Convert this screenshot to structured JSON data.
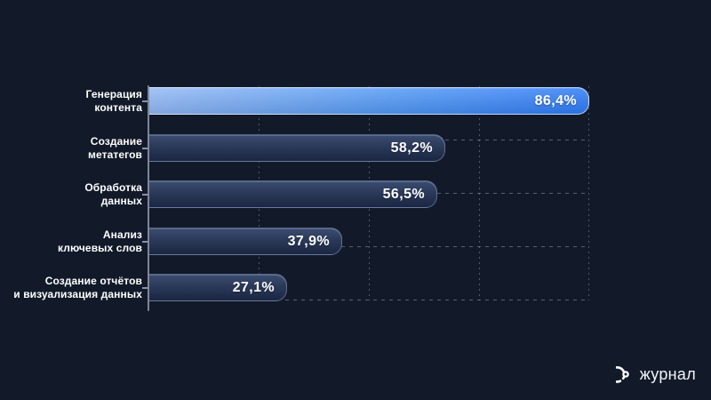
{
  "chart_data": {
    "type": "bar",
    "orientation": "horizontal",
    "title": "",
    "categories": [
      "Генерация контента",
      "Создание метатегов",
      "Обработка данных",
      "Анализ ключевых слов",
      "Создание отчётов и визуализация данных"
    ],
    "category_lines": [
      [
        "Генерация",
        "контента"
      ],
      [
        "Создание",
        "метатегов"
      ],
      [
        "Обработка",
        "данных"
      ],
      [
        "Анализ",
        "ключевых слов"
      ],
      [
        "Создание отчётов",
        "и визуализация данных"
      ]
    ],
    "values": [
      86.4,
      58.2,
      56.5,
      37.9,
      27.1
    ],
    "value_labels": [
      "86,4%",
      "58,2%",
      "56,5%",
      "37,9%",
      "27,1%"
    ],
    "xlim": [
      0,
      86.4
    ],
    "highlight_index": 0,
    "legend": "none",
    "grid": "dashed 4x4 behind bars",
    "colors": {
      "background": "#121a29",
      "highlight_bar_gradient": [
        "#93b9f6",
        "#2e7bf8"
      ],
      "bar_gradient": [
        "#3c4c70",
        "#1b2642"
      ],
      "bar_border": "rgba(160,180,210,0.45)",
      "grid_line": "rgba(168,180,202,0.4)",
      "axis_line": "#7d8696",
      "label_text": "#ffffff"
    }
  },
  "logo": {
    "icon": "spiral-circle-icon",
    "text": "журнал"
  }
}
